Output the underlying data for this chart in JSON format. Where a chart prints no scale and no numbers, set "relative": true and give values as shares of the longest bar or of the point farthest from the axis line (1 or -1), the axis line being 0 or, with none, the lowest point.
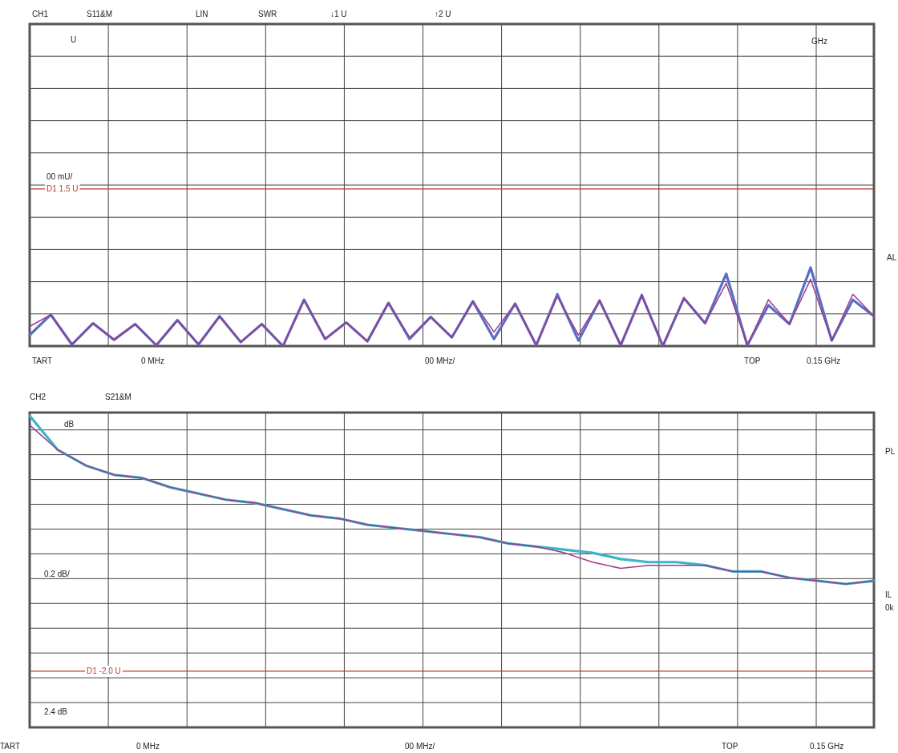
{
  "chart_data": [
    {
      "type": "line",
      "relative": true,
      "grid": true,
      "legend": false,
      "marker": "none",
      "line_style": "solid",
      "categories": [
        null,
        null,
        null,
        null,
        null,
        null,
        null,
        null,
        null,
        null,
        null,
        null,
        null,
        null,
        null,
        null,
        null,
        null,
        null,
        null,
        null,
        null,
        null,
        null,
        null,
        null,
        null,
        null,
        null,
        null,
        null,
        null,
        null,
        null,
        null,
        null,
        null,
        null,
        null,
        null,
        null
      ],
      "series": [
        {
          "color": "#5a6fc0",
          "values": [
            0.14,
            0.4,
            0.02,
            0.29,
            0.08,
            0.28,
            0.01,
            0.33,
            0.02,
            0.38,
            0.05,
            0.28,
            0,
            0.59,
            0.09,
            0.3,
            0.06,
            0.55,
            0.09,
            0.37,
            0.11,
            0.57,
            0.09,
            0.54,
            0.01,
            0.66,
            0.07,
            0.58,
            0.01,
            0.65,
            0,
            0.61,
            0.29,
            0.92,
            0.01,
            0.52,
            0.28,
            1.0,
            0.07,
            0.59,
            0.38
          ]
        },
        {
          "color": "#9b3a8f",
          "values": [
            0.25,
            0.4,
            0.02,
            0.29,
            0.08,
            0.28,
            0.01,
            0.33,
            0.02,
            0.38,
            0.05,
            0.28,
            0,
            0.59,
            0.09,
            0.3,
            0.06,
            0.55,
            0.11,
            0.37,
            0.11,
            0.57,
            0.18,
            0.54,
            0.01,
            0.63,
            0.14,
            0.58,
            0.01,
            0.65,
            0.01,
            0.61,
            0.29,
            0.8,
            0.01,
            0.59,
            0.28,
            0.85,
            0.07,
            0.66,
            0.38
          ]
        }
      ],
      "ref_lines": [
        {
          "axis": "y",
          "value": 2.0,
          "label": "D1 1.5 U",
          "color": "#c0392b"
        }
      ],
      "annotations": [
        "CH1",
        "S11&M",
        "LIN",
        "SWR",
        "↓1 U",
        "↑2 U",
        "U",
        "GHz",
        "00 mU/",
        "TART",
        "0 MHz",
        "00 MHz/",
        "TOP",
        "0.15 GHz",
        "AL"
      ]
    },
    {
      "type": "line",
      "relative": true,
      "grid": true,
      "legend": false,
      "marker": "none",
      "line_style": "solid",
      "categories": [
        null,
        null,
        null,
        null,
        null,
        null,
        null,
        null,
        null,
        null,
        null,
        null,
        null,
        null,
        null,
        null,
        null,
        null,
        null,
        null,
        null,
        null,
        null,
        null,
        null,
        null,
        null,
        null,
        null,
        null,
        null
      ],
      "series": [
        {
          "color": "#3bb5c8",
          "values": [
            1.0,
            0.89,
            0.84,
            0.81,
            0.8,
            0.77,
            0.75,
            0.73,
            0.72,
            0.7,
            0.68,
            0.67,
            0.65,
            0.64,
            0.63,
            0.62,
            0.61,
            0.59,
            0.58,
            0.57,
            0.56,
            0.54,
            0.53,
            0.53,
            0.52,
            0.5,
            0.5,
            0.48,
            0.47,
            0.46,
            0.47
          ]
        },
        {
          "color": "#9b3a8f",
          "values": [
            0.97,
            0.89,
            0.84,
            0.81,
            0.8,
            0.77,
            0.75,
            0.73,
            0.72,
            0.7,
            0.68,
            0.67,
            0.65,
            0.64,
            0.63,
            0.62,
            0.61,
            0.59,
            0.58,
            0.56,
            0.53,
            0.51,
            0.52,
            0.52,
            0.52,
            0.5,
            0.5,
            0.48,
            0.47,
            0.46,
            0.47
          ]
        }
      ],
      "ref_lines": [
        {
          "axis": "y",
          "value": 0.18,
          "label": "D1 -2.0 U",
          "color": "#c0392b"
        }
      ],
      "annotations": [
        "CH2",
        "S21&M",
        "dB",
        "PL",
        "0.2 dB/",
        "IL",
        "0k",
        "2.4 dB",
        "TART",
        "0 MHz",
        "00 MHz/",
        "TOP",
        "0.15 GHz"
      ]
    }
  ]
}
